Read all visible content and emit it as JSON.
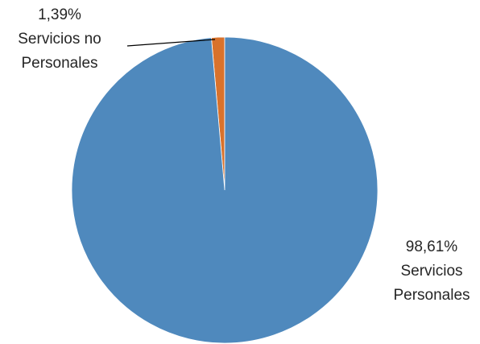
{
  "chart_data": {
    "type": "pie",
    "title": "",
    "slices": [
      {
        "label_line1": "Servicios no",
        "label_line2": "Personales",
        "percent_label": "1,39%",
        "value": 1.39,
        "color": "#D8722C"
      },
      {
        "label_line1": "Servicios",
        "label_line2": "Personales",
        "percent_label": "98,61%",
        "value": 98.61,
        "color": "#4F89BD"
      }
    ],
    "legend": "none"
  }
}
